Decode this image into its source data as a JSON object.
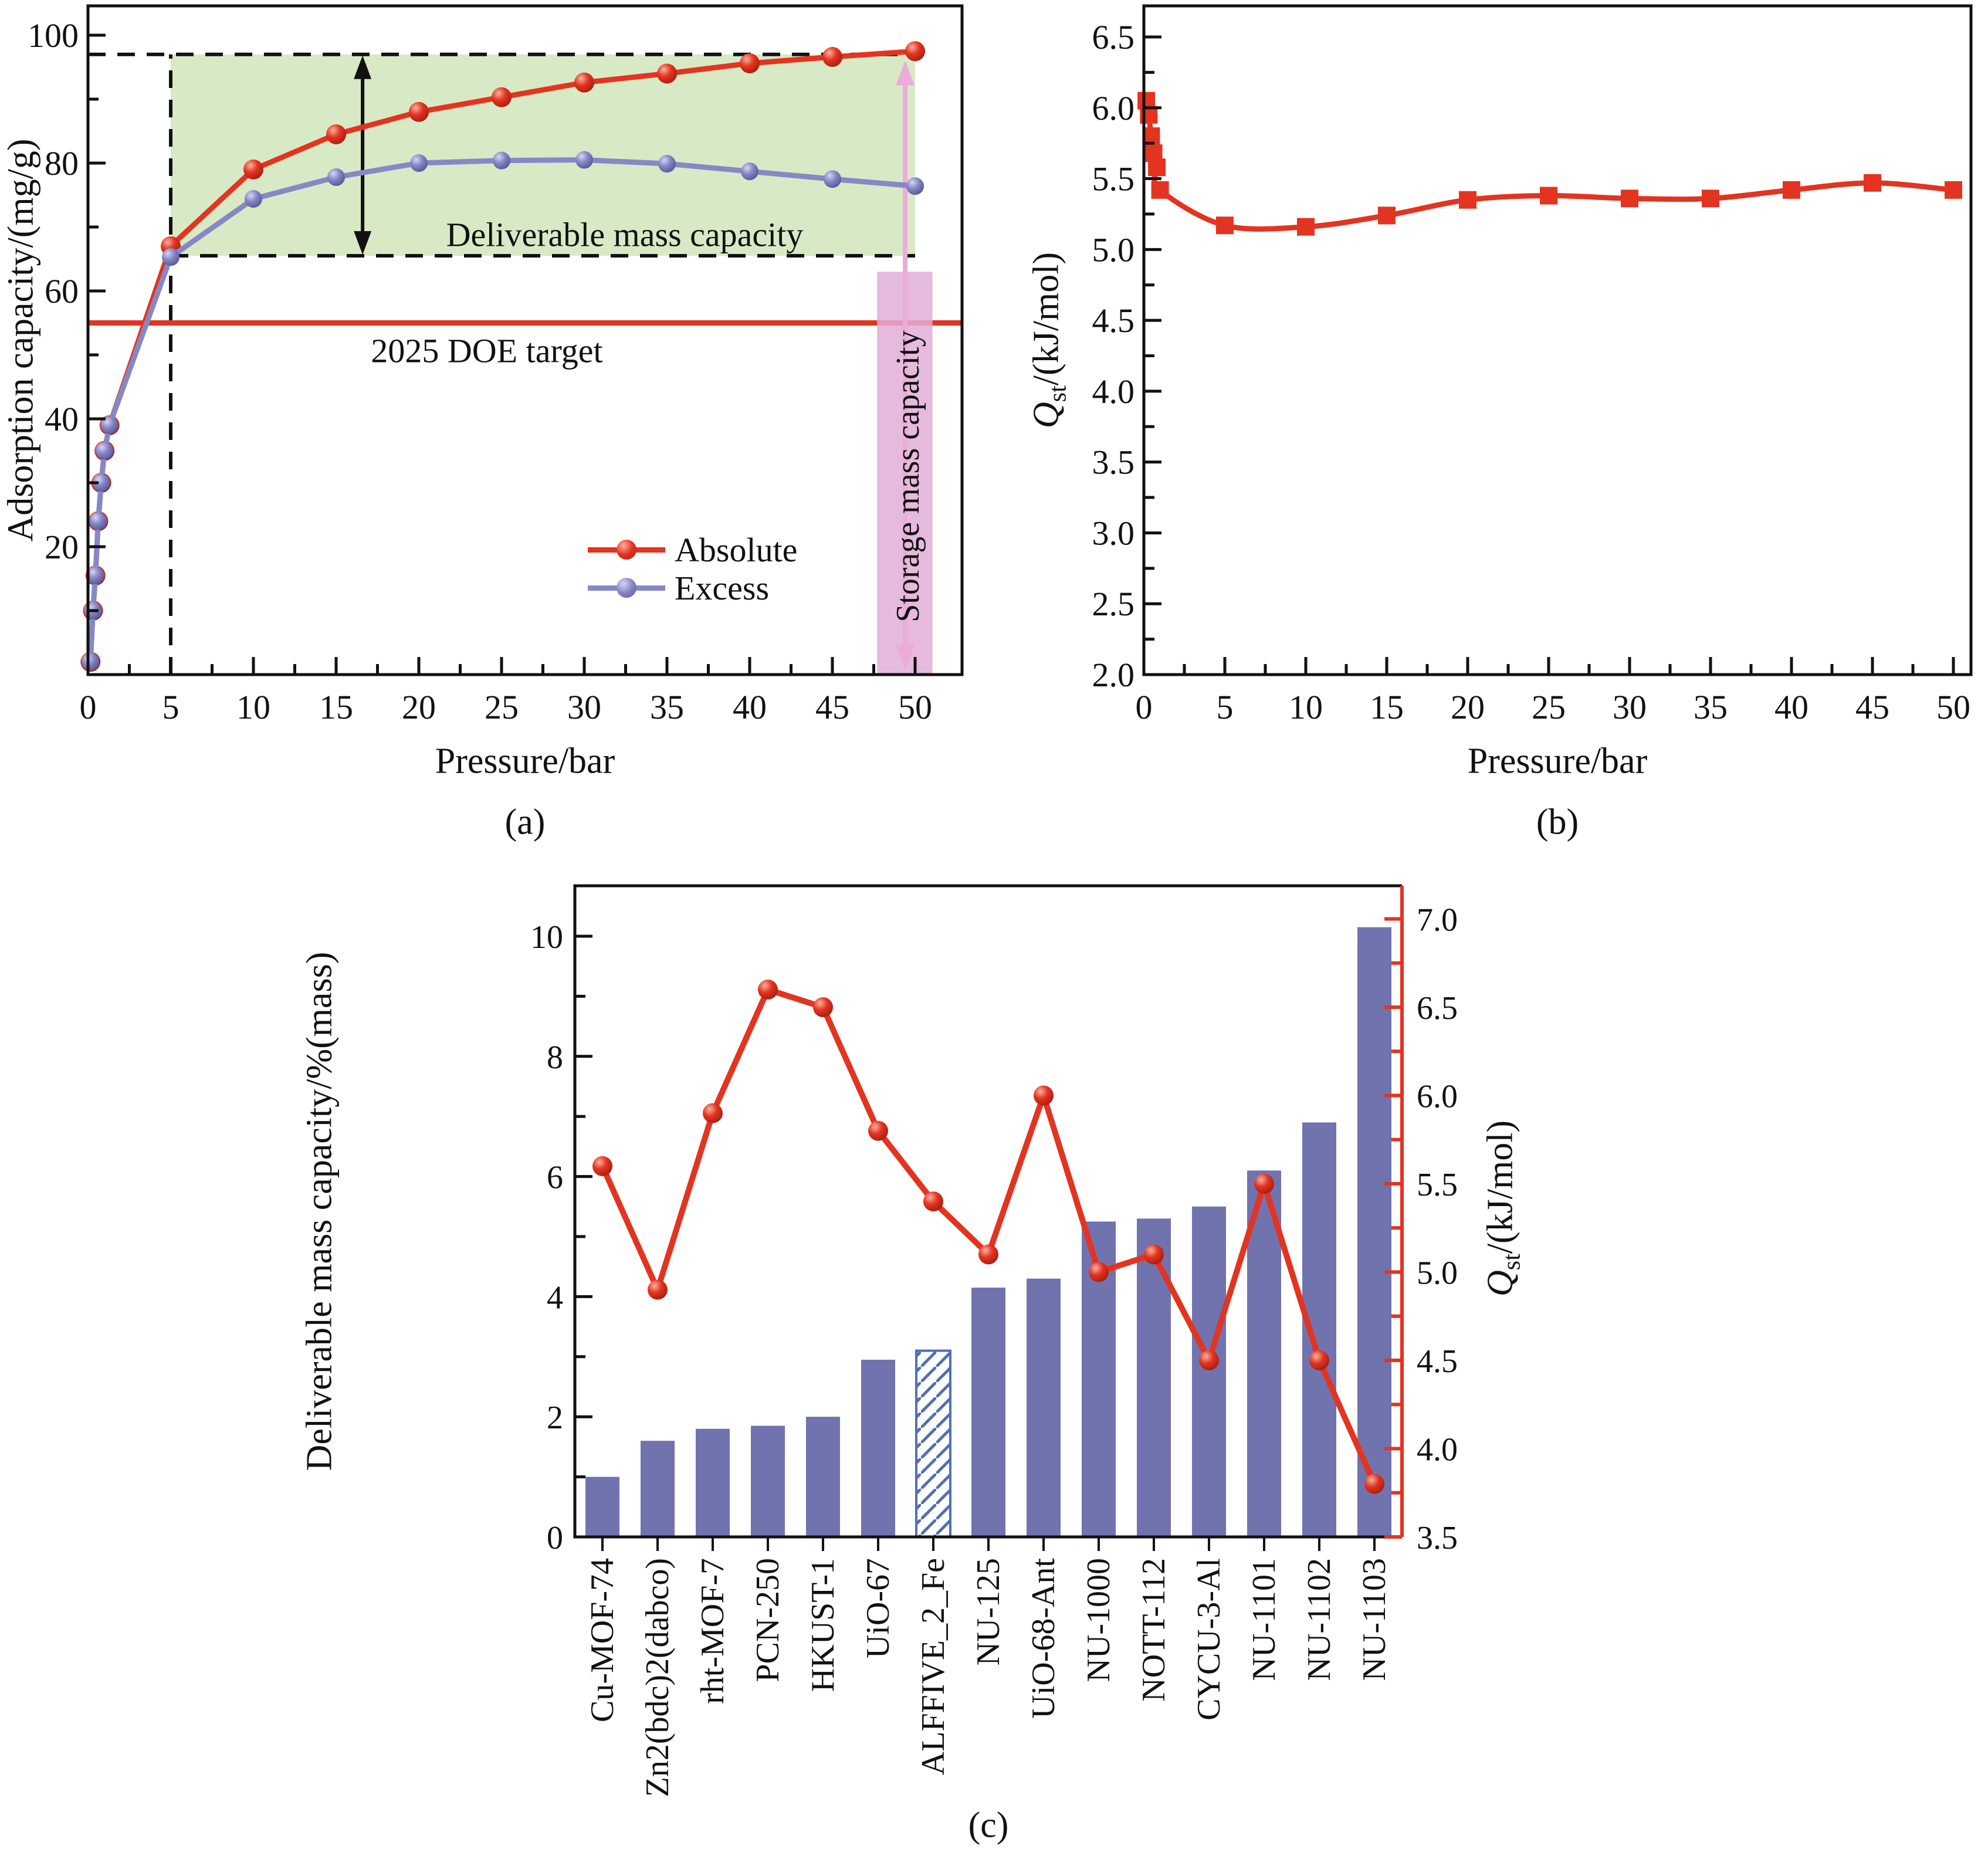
{
  "figure": {
    "captions": {
      "a": "(a)",
      "b": "(b)",
      "c": "(c)"
    }
  },
  "panel_a": {
    "ylabel": "Adsorption capacity/(mg/g)",
    "xlabel": "Pressure/bar",
    "legend": {
      "absolute": "Absolute",
      "excess": "Excess"
    },
    "annotations": {
      "deliverable": "Deliverable mass capacity",
      "doe": "2025 DOE target",
      "storage": "Storage mass capacity"
    }
  },
  "panel_b": {
    "xlabel": "Pressure/bar",
    "ylabel": {
      "symbol": "Q",
      "subscript": "st",
      "unit": "/(kJ/mol)"
    }
  },
  "panel_c": {
    "ylabel_left": "Deliverable mass capacity/%(mass)",
    "ylabel_right": {
      "symbol": "Q",
      "subscript": "st",
      "unit": "/(kJ/mol)"
    }
  },
  "colors": {
    "red": "#e23420",
    "excess_line": "#8688c6",
    "bar": "#7173ae",
    "hatch": "#5070b0",
    "green": "#d8e9c5",
    "band": "#e2aed6",
    "band_arrow": "#ecacd9",
    "axis": "#111111"
  },
  "chart_data": [
    {
      "panel": "a",
      "type": "line",
      "xlabel": "Pressure/bar",
      "ylabel": "Adsorption capacity/(mg/g)",
      "caption": "(a)",
      "xlim": [
        0,
        52.8
      ],
      "ylim": [
        0,
        104.6
      ],
      "xticks": [
        0,
        5,
        10,
        15,
        20,
        25,
        30,
        35,
        40,
        45,
        50
      ],
      "xticks_minor": [
        2.5,
        7.5,
        12.5,
        17.5,
        22.5,
        27.5,
        32.5,
        37.5,
        42.5,
        47.5
      ],
      "yticks": [
        20,
        40,
        60,
        80,
        100
      ],
      "yticks_minor": [
        10,
        30,
        50,
        70,
        90
      ],
      "series": [
        {
          "name": "Absolute",
          "color": "#e23420",
          "marker": "circle",
          "x": [
            0.15,
            0.3,
            0.45,
            0.62,
            0.8,
            1.0,
            1.3,
            5,
            10,
            15,
            20,
            25,
            30,
            35,
            40,
            45,
            50
          ],
          "y": [
            2,
            10,
            15.5,
            24,
            30,
            35,
            39,
            67,
            79,
            84.5,
            88,
            90.3,
            92.6,
            94,
            95.6,
            96.6,
            97.5
          ]
        },
        {
          "name": "Excess",
          "color": "#8688c6",
          "marker": "circle",
          "x": [
            0.15,
            0.3,
            0.45,
            0.62,
            0.8,
            1.0,
            1.3,
            5,
            10,
            15,
            20,
            25,
            30,
            35,
            40,
            45,
            50
          ],
          "y": [
            2,
            10,
            15.5,
            24,
            30,
            35,
            39,
            65.3,
            74.4,
            77.8,
            80,
            80.4,
            80.5,
            79.9,
            78.7,
            77.5,
            76.4
          ]
        }
      ],
      "green_region": {
        "x1": 5,
        "x2": 50,
        "y1": 65.5,
        "y2": 97,
        "color": "#d8e9c5"
      },
      "dashed": {
        "top_y": 97,
        "bottom_y": 65.5,
        "vline_x": 5
      },
      "doe_target_y": 55,
      "deliverable_arrow_x": 16.6,
      "storage_band": {
        "x1": 47.7,
        "x2": 51.05,
        "y_top": 63,
        "color": "#e2aed6"
      },
      "storage_arrow": {
        "x": 49.4,
        "y1": 0.8,
        "y2": 96,
        "color": "#ecacd9"
      }
    },
    {
      "panel": "b",
      "type": "line",
      "xlabel": "Pressure/bar",
      "ylabel": "Qst/(kJ/mol)",
      "caption": "(b)",
      "xlim": [
        0,
        51.1
      ],
      "ylim": [
        2.0,
        6.72
      ],
      "xticks": [
        0,
        5,
        10,
        15,
        20,
        25,
        30,
        35,
        40,
        45,
        50
      ],
      "xticks_minor": [
        2.5,
        7.5,
        12.5,
        17.5,
        22.5,
        27.5,
        32.5,
        37.5,
        42.5,
        47.5
      ],
      "yticks": [
        2.0,
        2.5,
        3.0,
        3.5,
        4.0,
        4.5,
        5.0,
        5.5,
        6.0,
        6.5
      ],
      "yticks_minor": [
        2.25,
        2.75,
        3.25,
        3.75,
        4.25,
        4.75,
        5.25,
        5.75,
        6.25
      ],
      "series": [
        {
          "name": "Qst",
          "color": "#e23420",
          "marker": "square",
          "x": [
            0.15,
            0.3,
            0.45,
            0.6,
            0.8,
            1.0,
            5,
            10,
            15,
            20,
            25,
            30,
            35,
            40,
            45,
            50
          ],
          "y": [
            6.05,
            5.95,
            5.8,
            5.68,
            5.58,
            5.42,
            5.17,
            5.16,
            5.24,
            5.35,
            5.38,
            5.36,
            5.36,
            5.42,
            5.47,
            5.42
          ]
        }
      ]
    },
    {
      "panel": "c",
      "type": "bar+line",
      "ylabel_left": "Deliverable mass capacity/%(mass)",
      "ylabel_right": "Qst/(kJ/mol)",
      "caption": "(c)",
      "categories": [
        "Cu-MOF-74",
        "Zn2(bdc)2(dabco)",
        "rht-MOF-7",
        "PCN-250",
        "HKUST-1",
        "UiO-67",
        "ALFFIVE_2_Fe",
        "NU-125",
        "UiO-68-Ant",
        "NU-1000",
        "NOTT-112",
        "CYCU-3-Al",
        "NU-1101",
        "NU-1102",
        "NU-1103"
      ],
      "bars": {
        "name": "Deliverable mass capacity",
        "color": "#7173ae",
        "values": [
          1.0,
          1.6,
          1.8,
          1.85,
          2.0,
          2.95,
          3.1,
          4.15,
          4.3,
          5.25,
          5.3,
          5.5,
          6.1,
          6.9,
          10.15
        ],
        "hatched_index": 6,
        "hatch_color": "#5070b0"
      },
      "line": {
        "name": "Qst",
        "color": "#e23420",
        "values": [
          5.6,
          4.9,
          5.9,
          6.6,
          6.5,
          5.8,
          5.4,
          5.1,
          6.0,
          5.0,
          5.1,
          4.5,
          5.5,
          4.5,
          3.8
        ]
      },
      "ylim_left": [
        0,
        10.84
      ],
      "ylim_right": [
        3.5,
        7.19
      ],
      "yticks_left": [
        0,
        2,
        4,
        6,
        8,
        10
      ],
      "yticks_left_minor": [
        1,
        3,
        5,
        7,
        9
      ],
      "yticks_right": [
        3.5,
        4.0,
        4.5,
        5.0,
        5.5,
        6.0,
        6.5,
        7.0
      ],
      "yticks_right_minor": [
        3.75,
        4.25,
        4.75,
        5.25,
        5.75,
        6.25,
        6.75
      ]
    }
  ]
}
